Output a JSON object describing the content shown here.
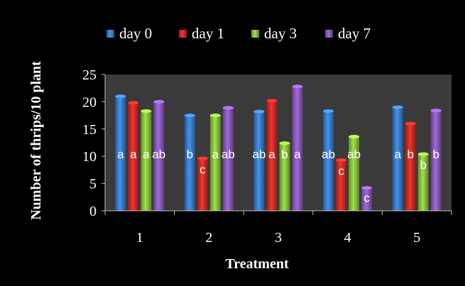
{
  "chart_data": {
    "type": "bar",
    "xlabel": "Treatment",
    "ylabel": "Number of thrips/10 plant",
    "categories": [
      "1",
      "2",
      "3",
      "4",
      "5"
    ],
    "ylim": [
      0,
      25
    ],
    "yticks": [
      "0",
      "5",
      "10",
      "15",
      "20",
      "25"
    ],
    "grid": false,
    "legend_position": "top",
    "plot_background": "#3a3a3a",
    "series": [
      {
        "name": "day 0",
        "color": "#3b7fd0",
        "values": [
          21.0,
          17.5,
          18.2,
          18.3,
          19.0
        ],
        "labels": [
          "a",
          "b",
          "ab",
          "ab",
          "a"
        ]
      },
      {
        "name": "day 1",
        "color": "#d42c26",
        "values": [
          19.8,
          9.6,
          20.2,
          9.3,
          16.0
        ],
        "labels": [
          "a",
          "c",
          "a",
          "c",
          "b"
        ]
      },
      {
        "name": "day 3",
        "color": "#8cc63f",
        "values": [
          18.3,
          17.5,
          12.4,
          13.6,
          10.4
        ],
        "labels": [
          "a",
          "a",
          "b",
          "ab",
          "b"
        ]
      },
      {
        "name": "day 7",
        "color": "#8e5bbf",
        "values": [
          20.0,
          18.9,
          22.8,
          4.2,
          18.4
        ],
        "labels": [
          "ab",
          "ab",
          "a",
          "c",
          "b"
        ]
      }
    ]
  }
}
